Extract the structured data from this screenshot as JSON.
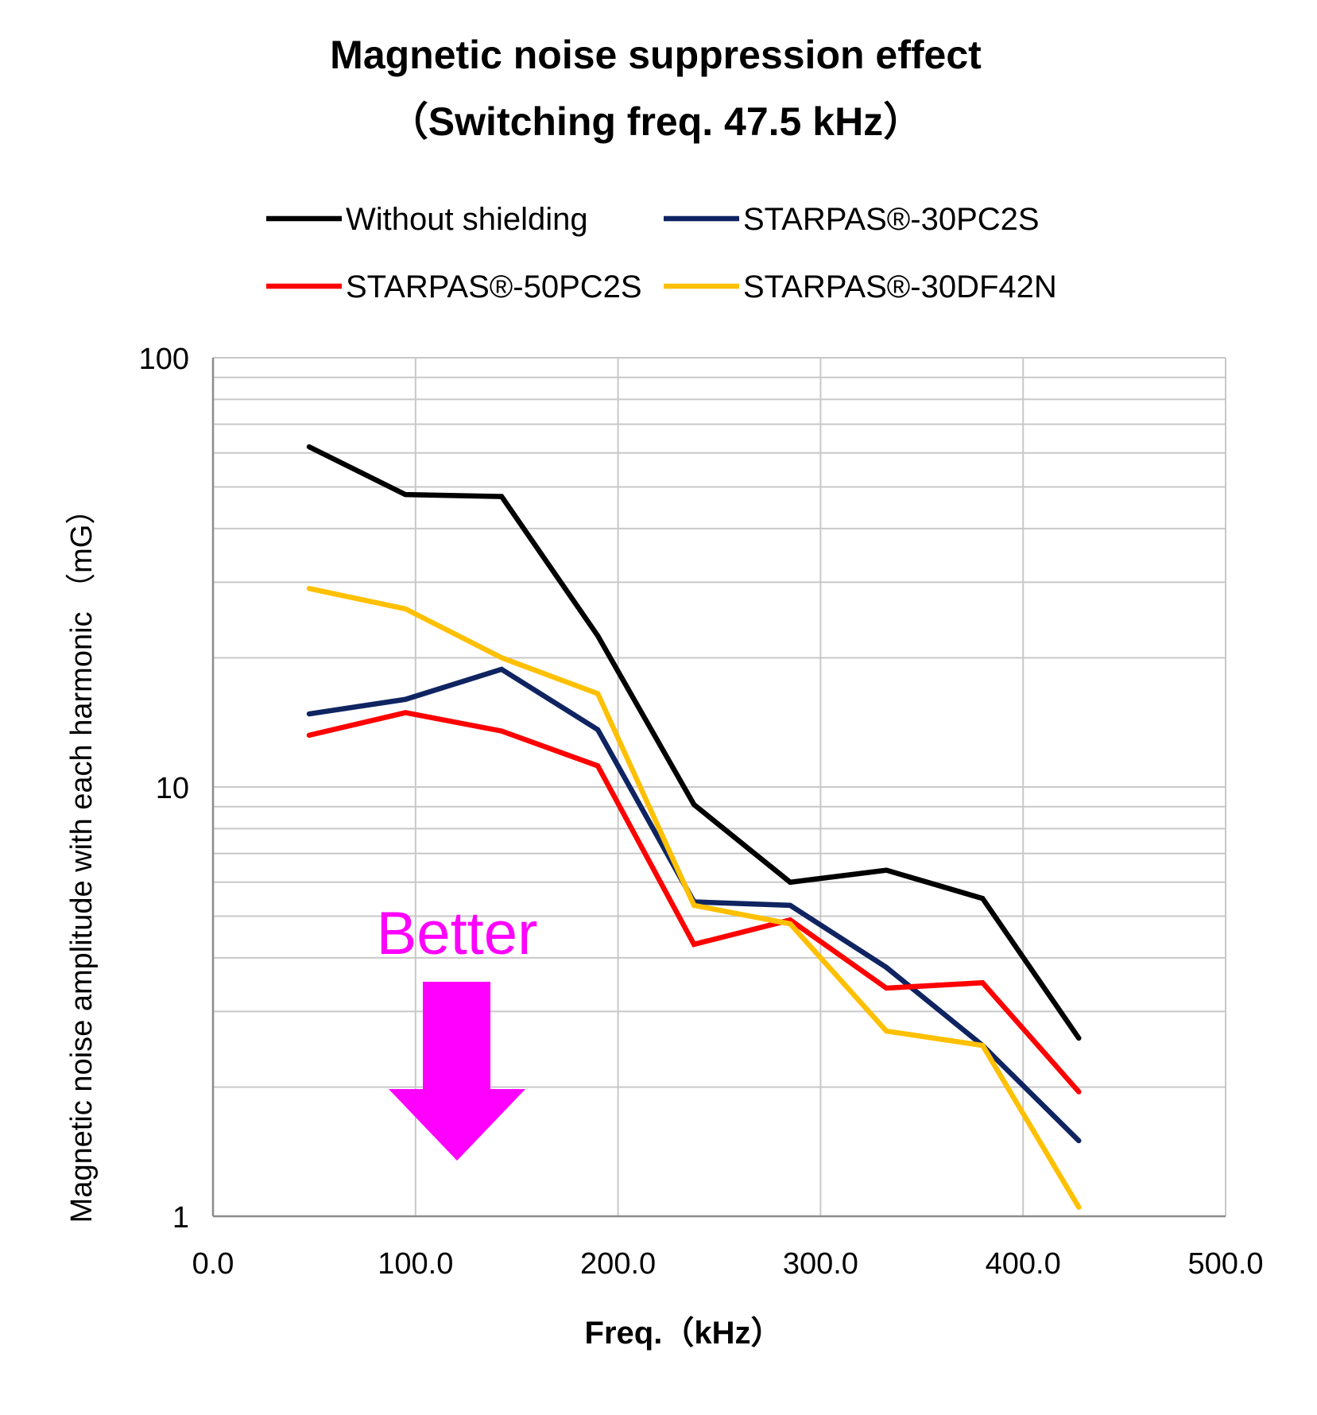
{
  "chart_data": {
    "type": "line",
    "title": "Magnetic noise suppression effect",
    "subtitle": "（Switching freq.  47.5 kHz）",
    "xlabel": "Freq.（kHz）",
    "ylabel": "Magnetic noise amplitude with each harmonic （mG）",
    "xlim": [
      0,
      500
    ],
    "ylim": [
      1,
      100
    ],
    "yscale": "log",
    "grid": true,
    "legend_position": "top",
    "x_tick_labels": [
      "0.0",
      "100.0",
      "200.0",
      "300.0",
      "400.0",
      "500.0"
    ],
    "y_tick_labels": [
      "1",
      "10",
      "100"
    ],
    "x": [
      47.5,
      95,
      142.5,
      190,
      237.5,
      285,
      332.5,
      380,
      427.5
    ],
    "series": [
      {
        "name": "Without shielding",
        "color": "#000000",
        "values": [
          62,
          48,
          47.5,
          22.5,
          9.1,
          6.0,
          6.4,
          5.5,
          2.6
        ]
      },
      {
        "name": "STARPAS®-30PC2S",
        "color": "#0f2461",
        "values": [
          14.8,
          16.0,
          18.8,
          13.6,
          5.4,
          5.3,
          3.8,
          2.5,
          1.5
        ]
      },
      {
        "name": "STARPAS®-50PC2S",
        "color": "#ff0000",
        "values": [
          13.2,
          14.9,
          13.5,
          11.2,
          4.3,
          4.9,
          3.4,
          3.5,
          1.95
        ]
      },
      {
        "name": "STARPAS®-30DF42N",
        "color": "#ffc000",
        "values": [
          29.0,
          26.0,
          20.0,
          16.5,
          5.3,
          4.8,
          2.7,
          2.5,
          1.05
        ]
      }
    ],
    "annotations": [
      {
        "text": "Better",
        "color": "#ff00ff",
        "arrow": "down"
      }
    ]
  }
}
